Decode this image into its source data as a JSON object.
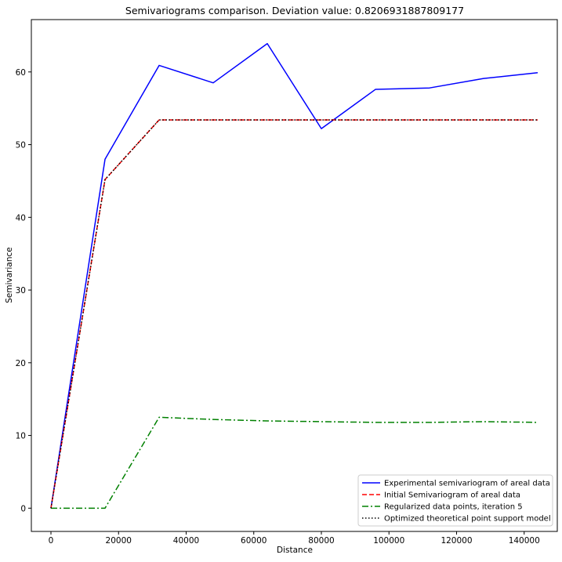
{
  "chart_data": {
    "type": "line",
    "title": "Semivariograms comparison. Deviation value: 0.8206931887809177",
    "xlabel": "Distance",
    "ylabel": "Semivariance",
    "xlim": [
      -5800,
      149800
    ],
    "ylim": [
      -3.2,
      67.2
    ],
    "grid": false,
    "legend_position": "lower-right",
    "x_ticks": [
      0,
      20000,
      40000,
      60000,
      80000,
      100000,
      120000,
      140000
    ],
    "x_tick_labels": [
      "0",
      "20000",
      "40000",
      "60000",
      "80000",
      "100000",
      "120000",
      "140000"
    ],
    "y_ticks": [
      0,
      10,
      20,
      30,
      40,
      50,
      60
    ],
    "y_tick_labels": [
      "0",
      "10",
      "20",
      "30",
      "40",
      "50",
      "60"
    ],
    "series": [
      {
        "name": "Experimental semivariogram of areal data",
        "color": "#0000ff",
        "dash": "solid",
        "x": [
          0,
          16000,
          32000,
          48000,
          64000,
          80000,
          96000,
          112000,
          128000,
          144000
        ],
        "y": [
          0,
          48.0,
          60.9,
          58.5,
          63.9,
          52.2,
          57.6,
          57.8,
          59.1,
          59.9
        ]
      },
      {
        "name": "Initial Semivariogram of areal data",
        "color": "#ff0000",
        "dash": "dashed",
        "x": [
          0,
          16000,
          32000,
          48000,
          64000,
          80000,
          96000,
          112000,
          128000,
          144000
        ],
        "y": [
          0,
          45.2,
          53.4,
          53.4,
          53.4,
          53.4,
          53.4,
          53.4,
          53.4,
          53.4
        ]
      },
      {
        "name": "Regularized data points, iteration 5",
        "color": "#008000",
        "dash": "dashdot",
        "x": [
          0,
          16000,
          32000,
          48000,
          64000,
          80000,
          96000,
          112000,
          128000,
          144000
        ],
        "y": [
          0,
          0,
          12.5,
          12.2,
          12.0,
          11.9,
          11.8,
          11.8,
          11.9,
          11.8
        ]
      },
      {
        "name": "Optimized theoretical point support model",
        "color": "#000000",
        "dash": "dotted",
        "x": [
          0,
          16000,
          32000,
          48000,
          64000,
          80000,
          96000,
          112000,
          128000,
          144000
        ],
        "y": [
          0,
          45.2,
          53.4,
          53.4,
          53.4,
          53.4,
          53.4,
          53.4,
          53.4,
          53.4
        ]
      }
    ]
  }
}
